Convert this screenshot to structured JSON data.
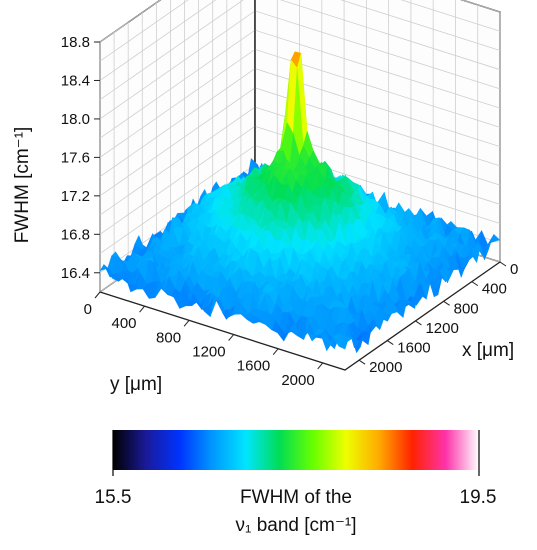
{
  "chart_data": {
    "type": "surface3d",
    "title": "",
    "zlabel": "FWHM [cm⁻¹]",
    "xlabel": "x [μm]",
    "ylabel": "y [μm]",
    "z_ticks": [
      "16.4",
      "16.8",
      "17.2",
      "17.6",
      "18.0",
      "18.4",
      "18.8"
    ],
    "z_tick_values": [
      16.4,
      16.8,
      17.2,
      17.6,
      18.0,
      18.4,
      18.8
    ],
    "x_ticks": [
      "0",
      "400",
      "800",
      "1200",
      "1600",
      "2000"
    ],
    "x_tick_values": [
      0,
      400,
      800,
      1200,
      1600,
      2000
    ],
    "y_ticks": [
      "0",
      "400",
      "800",
      "1200",
      "1600",
      "2000"
    ],
    "y_tick_values": [
      0,
      400,
      800,
      1200,
      1600,
      2000
    ],
    "xlim": [
      0,
      2200
    ],
    "ylim": [
      0,
      2200
    ],
    "zlim": [
      16.2,
      18.8
    ],
    "grid": true,
    "surface": {
      "base_level": 16.45,
      "mound_peak": 17.3,
      "spike_peak": 18.75,
      "spike_location_um": [
        850,
        900
      ]
    },
    "colorbar": {
      "min_label": "15.5",
      "max_label": "19.5",
      "min": 15.5,
      "max": 19.5,
      "label_line1": "FWHM of the",
      "label_line2": "ν₁ band [cm⁻¹]",
      "colors": [
        "#000000",
        "#1a1a9a",
        "#0033ff",
        "#0099ff",
        "#00e5ff",
        "#00dd55",
        "#66ff00",
        "#eeff00",
        "#ffaa00",
        "#ff2200",
        "#ff33aa",
        "#ffffff"
      ]
    }
  }
}
